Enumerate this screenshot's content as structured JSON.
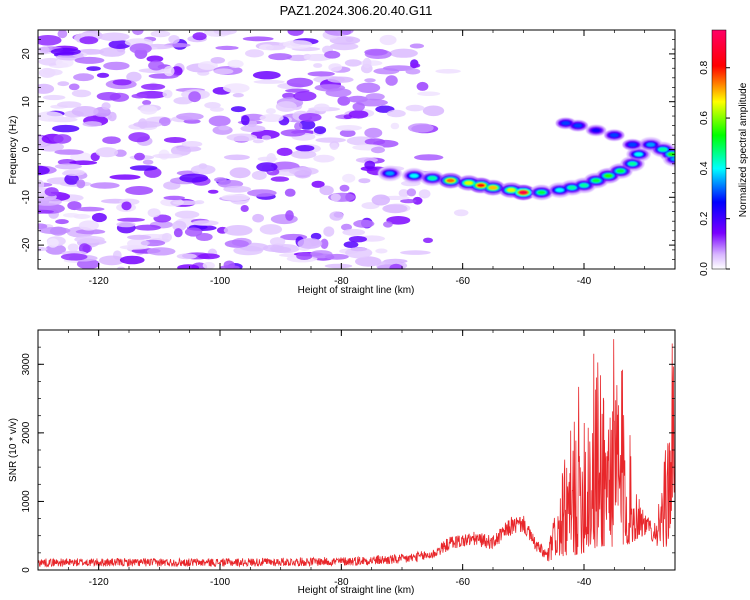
{
  "title": "PAZ1.2024.306.20.40.G11",
  "chart_data": [
    {
      "type": "heatmap",
      "xlabel": "Height of straight line (km)",
      "ylabel": "Frequency (Hz)",
      "colorbar_label": "Normalized spectral amplitude",
      "xlim": [
        -130,
        -25
      ],
      "ylim": [
        -25,
        25
      ],
      "x_ticks": [
        -120,
        -100,
        -80,
        -60,
        -40
      ],
      "y_ticks": [
        -20,
        -10,
        0,
        10,
        20
      ],
      "colorbar_ticks": [
        0.0,
        0.2,
        0.4,
        0.6,
        0.8
      ],
      "colorbar_range": [
        0,
        0.95
      ],
      "colorbar_colors": [
        "#ffffff",
        "#cc99ff",
        "#7a00ff",
        "#0000ff",
        "#00ffff",
        "#00ff00",
        "#ffff00",
        "#ff0000",
        "#ff0066"
      ],
      "noise_region_x": [
        -130,
        -65
      ],
      "ridge": [
        {
          "x": -72,
          "y": -5,
          "a": 0.35
        },
        {
          "x": -68,
          "y": -5.5,
          "a": 0.4
        },
        {
          "x": -65,
          "y": -6,
          "a": 0.45
        },
        {
          "x": -62,
          "y": -6.5,
          "a": 0.75
        },
        {
          "x": -59,
          "y": -7,
          "a": 0.65
        },
        {
          "x": -57,
          "y": -7.5,
          "a": 0.8
        },
        {
          "x": -55,
          "y": -8,
          "a": 0.7
        },
        {
          "x": -52,
          "y": -8.5,
          "a": 0.65
        },
        {
          "x": -50,
          "y": -9,
          "a": 0.9
        },
        {
          "x": -47,
          "y": -9,
          "a": 0.5
        },
        {
          "x": -44,
          "y": -8.5,
          "a": 0.4
        },
        {
          "x": -42,
          "y": -8,
          "a": 0.45
        },
        {
          "x": -40,
          "y": -7.5,
          "a": 0.45
        },
        {
          "x": -38,
          "y": -6.5,
          "a": 0.5
        },
        {
          "x": -36,
          "y": -5.5,
          "a": 0.55
        },
        {
          "x": -34,
          "y": -4.5,
          "a": 0.5
        },
        {
          "x": -32,
          "y": -3,
          "a": 0.45
        },
        {
          "x": -31,
          "y": -1,
          "a": 0.4
        },
        {
          "x": -32,
          "y": 1,
          "a": 0.3
        },
        {
          "x": -35,
          "y": 3,
          "a": 0.3
        },
        {
          "x": -38,
          "y": 4,
          "a": 0.25
        },
        {
          "x": -41,
          "y": 5,
          "a": 0.3
        },
        {
          "x": -43,
          "y": 5.5,
          "a": 0.3
        },
        {
          "x": -29,
          "y": 1,
          "a": 0.35
        },
        {
          "x": -27,
          "y": 0,
          "a": 0.45
        },
        {
          "x": -25.5,
          "y": -1,
          "a": 0.55
        },
        {
          "x": -25,
          "y": -2,
          "a": 0.35
        }
      ]
    },
    {
      "type": "line",
      "xlabel": "Height of straight line (km)",
      "ylabel": "SNR (10 * v/v)",
      "xlim": [
        -130,
        -25
      ],
      "ylim": [
        0,
        3500
      ],
      "x_ticks": [
        -120,
        -100,
        -80,
        -60,
        -40
      ],
      "y_ticks": [
        0,
        1000,
        2000,
        3000
      ],
      "color": "#e8262a",
      "envelope": [
        {
          "x": -130,
          "lo": 50,
          "hi": 170
        },
        {
          "x": -100,
          "lo": 50,
          "hi": 170
        },
        {
          "x": -80,
          "lo": 60,
          "hi": 190
        },
        {
          "x": -70,
          "lo": 80,
          "hi": 230
        },
        {
          "x": -65,
          "lo": 150,
          "hi": 300
        },
        {
          "x": -62,
          "lo": 300,
          "hi": 500
        },
        {
          "x": -58,
          "lo": 350,
          "hi": 560
        },
        {
          "x": -55,
          "lo": 300,
          "hi": 500
        },
        {
          "x": -52,
          "lo": 500,
          "hi": 780
        },
        {
          "x": -50,
          "lo": 550,
          "hi": 800
        },
        {
          "x": -48,
          "lo": 280,
          "hi": 460
        },
        {
          "x": -46,
          "lo": 80,
          "hi": 300
        },
        {
          "x": -44,
          "lo": 200,
          "hi": 1200
        },
        {
          "x": -42,
          "lo": 200,
          "hi": 2200
        },
        {
          "x": -40,
          "lo": 250,
          "hi": 3100
        },
        {
          "x": -38,
          "lo": 300,
          "hi": 3350
        },
        {
          "x": -36,
          "lo": 350,
          "hi": 3300
        },
        {
          "x": -34,
          "lo": 300,
          "hi": 3500
        },
        {
          "x": -32,
          "lo": 400,
          "hi": 1600
        },
        {
          "x": -30,
          "lo": 500,
          "hi": 800
        },
        {
          "x": -28,
          "lo": 350,
          "hi": 750
        },
        {
          "x": -26.5,
          "lo": 300,
          "hi": 1800
        },
        {
          "x": -25.5,
          "lo": 700,
          "hi": 3400
        },
        {
          "x": -25,
          "lo": 1000,
          "hi": 3450
        }
      ]
    }
  ]
}
